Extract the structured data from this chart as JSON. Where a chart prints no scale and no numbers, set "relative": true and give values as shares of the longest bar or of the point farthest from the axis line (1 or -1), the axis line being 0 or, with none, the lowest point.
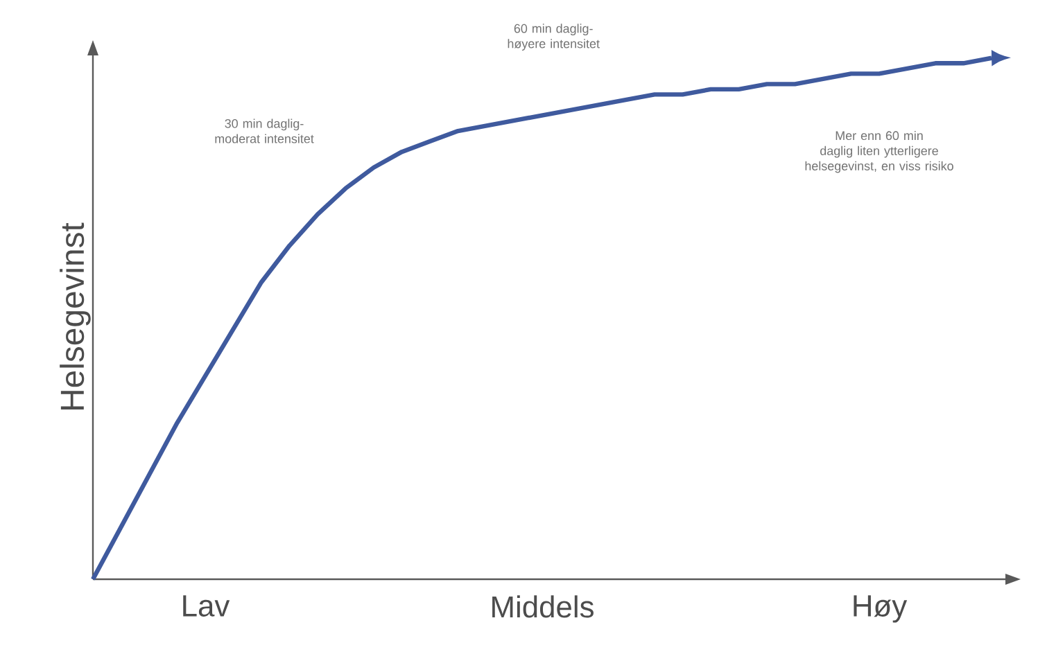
{
  "chart_data": {
    "type": "line",
    "relative": true,
    "ylabel": "Helsegevinst",
    "categories": [
      null,
      null,
      null,
      null,
      "Lav",
      null,
      null,
      null,
      null,
      null,
      null,
      null,
      null,
      null,
      null,
      null,
      "Middels",
      null,
      null,
      null,
      null,
      null,
      null,
      null,
      null,
      null,
      null,
      null,
      "Høy",
      null,
      null,
      null,
      null
    ],
    "series": [
      {
        "color": "#3f5a9e",
        "values": [
          0,
          0.1,
          0.2,
          0.3,
          0.39,
          0.48,
          0.57,
          0.64,
          0.7,
          0.75,
          0.79,
          0.82,
          0.84,
          0.86,
          0.87,
          0.88,
          0.89,
          0.9,
          0.91,
          0.92,
          0.93,
          0.93,
          0.94,
          0.94,
          0.95,
          0.95,
          0.96,
          0.97,
          0.97,
          0.98,
          0.99,
          0.99,
          1
        ]
      }
    ],
    "marker": "none",
    "line_style": "solid",
    "grid": false,
    "annotations": [
      "30 min daglig- moderat intensitet",
      "60 min daglig- høyere intensitet",
      "Mer enn 60 min daglig liten ytterligere helsegevinst, en viss risiko"
    ]
  }
}
